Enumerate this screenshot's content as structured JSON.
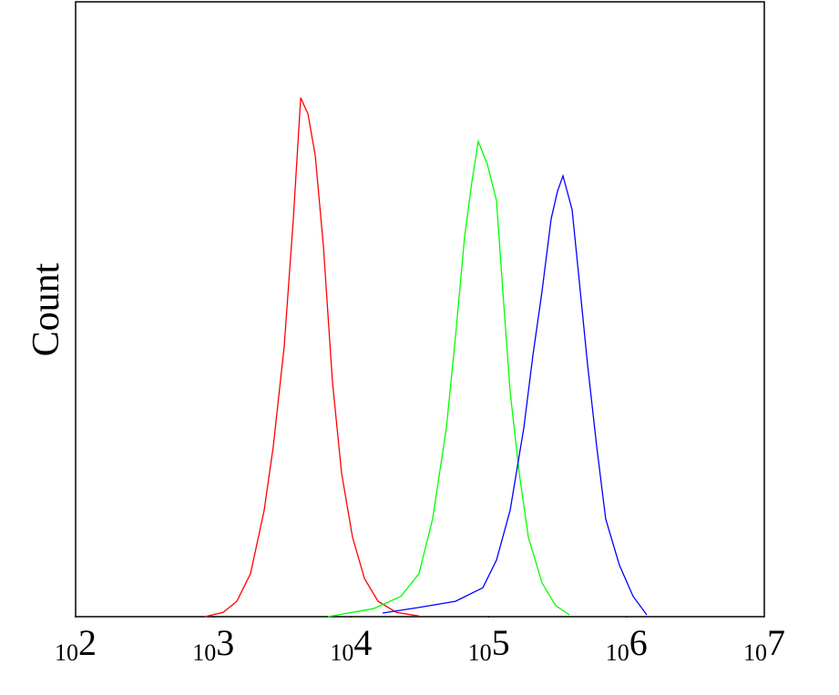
{
  "chart_data": {
    "type": "line",
    "ylabel": "Count",
    "xscale": "log",
    "xlim": [
      100,
      10000000
    ],
    "xticks": [
      {
        "value": 100,
        "label": "102"
      },
      {
        "value": 1000,
        "label": "103"
      },
      {
        "value": 10000,
        "label": "104"
      },
      {
        "value": 100000,
        "label": "105"
      },
      {
        "value": 1000000,
        "label": "106"
      },
      {
        "value": 10000000,
        "label": "107"
      }
    ],
    "ylim": [
      0,
      100
    ],
    "series": [
      {
        "color": "#ff0000",
        "x": [
          869,
          1178,
          1482,
          1862,
          2340,
          2723,
          3271,
          3808,
          4305,
          4862,
          5485,
          6295,
          7330,
          8535,
          10250,
          12500,
          15700,
          21300,
          31100
        ],
        "values": [
          0,
          0.7,
          2.5,
          7.0,
          17.3,
          27.7,
          44.0,
          64.7,
          84.4,
          81.8,
          75.1,
          60.3,
          38.1,
          23.3,
          12.9,
          6.2,
          2.5,
          0.7,
          0.1
        ]
      },
      {
        "color": "#00ff00",
        "x": [
          6790,
          14550,
          23000,
          31100,
          39100,
          49200,
          57300,
          66700,
          75300,
          83800,
          97500,
          113700,
          126500,
          142900,
          166400,
          193700,
          243300,
          305800,
          384600
        ],
        "values": [
          0,
          1.3,
          3.3,
          7.0,
          15.9,
          30.7,
          45.5,
          61.8,
          70.7,
          77.3,
          73.6,
          67.7,
          52.9,
          36.6,
          23.3,
          12.9,
          5.5,
          1.8,
          0.3
        ]
      },
      {
        "color": "#0000ff",
        "x": [
          16950,
          31100,
          57300,
          90400,
          113700,
          142900,
          179500,
          209000,
          243300,
          283300,
          315500,
          345400,
          402100,
          447500,
          521000,
          606600,
          706000,
          887000,
          1116000,
          1403000
        ],
        "values": [
          0.6,
          1.5,
          2.5,
          4.7,
          9.2,
          17.3,
          30.7,
          42.5,
          52.9,
          64.7,
          69.2,
          71.7,
          66.2,
          55.9,
          41.0,
          27.7,
          15.9,
          8.4,
          3.3,
          0.3
        ]
      }
    ]
  }
}
